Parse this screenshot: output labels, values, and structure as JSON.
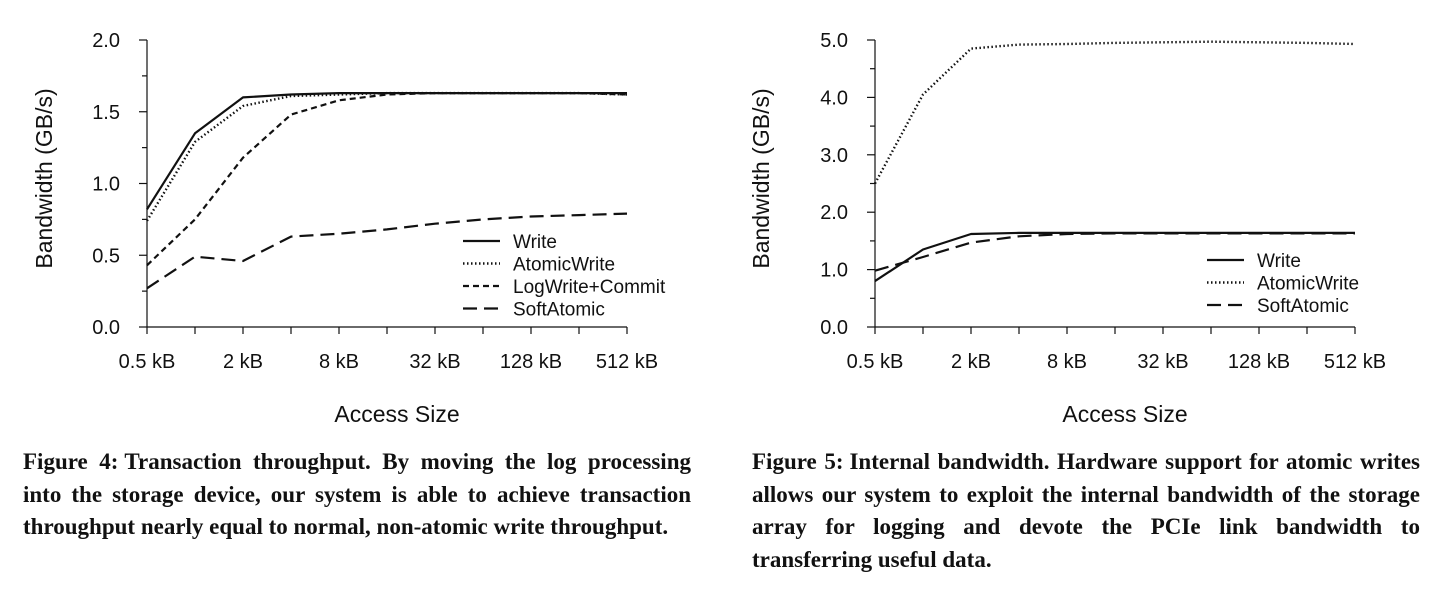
{
  "chart_data": [
    {
      "type": "line",
      "x": [
        "0.5 kB",
        "1 kB",
        "2 kB",
        "4 kB",
        "8 kB",
        "16 kB",
        "32 kB",
        "64 kB",
        "128 kB",
        "256 kB",
        "512 kB"
      ],
      "xticklabels": [
        "0.5 kB",
        "2 kB",
        "8 kB",
        "32 kB",
        "128 kB",
        "512 kB"
      ],
      "yticklabels": [
        "0.0",
        "0.5",
        "1.0",
        "1.5",
        "2.0"
      ],
      "ylim": [
        0,
        2.0
      ],
      "xlabel": "Access Size",
      "ylabel": "Bandwidth (GB/s)",
      "legend_position": "bottom-right",
      "grid": false,
      "series": [
        {
          "name": "Write",
          "style": "solid",
          "values": [
            0.82,
            1.35,
            1.6,
            1.62,
            1.63,
            1.63,
            1.63,
            1.63,
            1.63,
            1.63,
            1.63
          ]
        },
        {
          "name": "AtomicWrite",
          "style": "dotted",
          "values": [
            0.74,
            1.29,
            1.54,
            1.61,
            1.62,
            1.63,
            1.63,
            1.63,
            1.63,
            1.63,
            1.62
          ]
        },
        {
          "name": "LogWrite+Commit",
          "style": "short-dash",
          "values": [
            0.43,
            0.75,
            1.18,
            1.48,
            1.58,
            1.62,
            1.63,
            1.63,
            1.63,
            1.63,
            1.62
          ]
        },
        {
          "name": "SoftAtomic",
          "style": "long-dash",
          "values": [
            0.27,
            0.49,
            0.46,
            0.63,
            0.65,
            0.68,
            0.72,
            0.75,
            0.77,
            0.78,
            0.79
          ]
        }
      ],
      "caption": {
        "label": "Figure 4:",
        "text": "Transaction throughput. By moving the log processing into the storage device, our system is able to achieve transaction throughput nearly equal to normal, non-atomic write throughput."
      }
    },
    {
      "type": "line",
      "x": [
        "0.5 kB",
        "1 kB",
        "2 kB",
        "4 kB",
        "8 kB",
        "16 kB",
        "32 kB",
        "64 kB",
        "128 kB",
        "256 kB",
        "512 kB"
      ],
      "xticklabels": [
        "0.5 kB",
        "2 kB",
        "8 kB",
        "32 kB",
        "128 kB",
        "512 kB"
      ],
      "yticklabels": [
        "0.0",
        "1.0",
        "2.0",
        "3.0",
        "4.0",
        "5.0"
      ],
      "ylim": [
        0,
        5.0
      ],
      "xlabel": "Access Size",
      "ylabel": "Bandwidth (GB/s)",
      "legend_position": "bottom-right",
      "grid": false,
      "series": [
        {
          "name": "Write",
          "style": "solid",
          "values": [
            0.8,
            1.35,
            1.62,
            1.64,
            1.64,
            1.64,
            1.64,
            1.64,
            1.64,
            1.64,
            1.64
          ]
        },
        {
          "name": "AtomicWrite",
          "style": "dotted",
          "values": [
            2.5,
            4.05,
            4.85,
            4.92,
            4.93,
            4.95,
            4.96,
            4.97,
            4.96,
            4.95,
            4.93
          ]
        },
        {
          "name": "SoftAtomic",
          "style": "long-dash",
          "values": [
            0.98,
            1.22,
            1.47,
            1.58,
            1.62,
            1.63,
            1.63,
            1.63,
            1.63,
            1.63,
            1.63
          ]
        }
      ],
      "caption": {
        "label": "Figure 5:",
        "text": "Internal bandwidth. Hardware support for atomic writes allows our system to exploit the internal bandwidth of the storage array for logging and devote the PCIe link bandwidth to transferring useful data."
      }
    }
  ]
}
